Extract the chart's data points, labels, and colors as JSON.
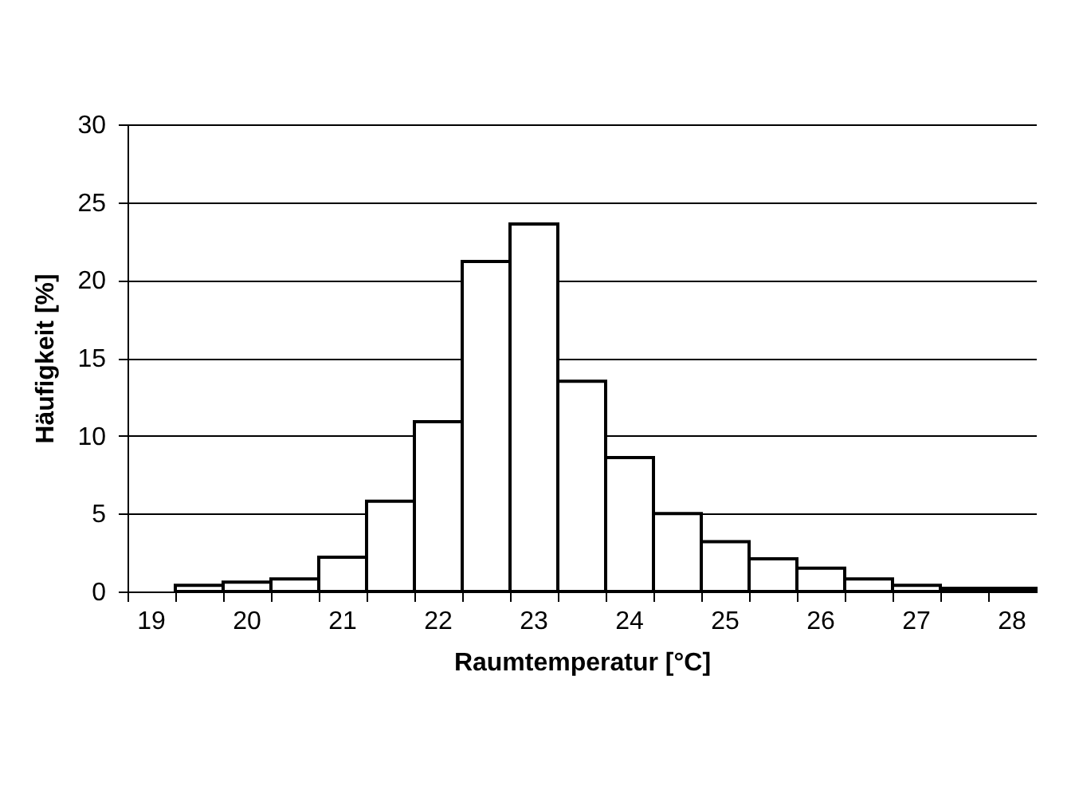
{
  "chart_data": {
    "type": "bar",
    "xlabel": "Raumtemperatur [°C]",
    "ylabel": "Häufigkeit [%]",
    "categories": [
      "19",
      null,
      "20",
      null,
      "21",
      null,
      "22",
      null,
      "23",
      null,
      "24",
      null,
      "25",
      null,
      "26",
      null,
      "27",
      null,
      "28"
    ],
    "values": [
      null,
      0.4,
      0.6,
      0.8,
      2.2,
      5.8,
      10.9,
      21.2,
      23.6,
      13.5,
      8.6,
      5.0,
      3.2,
      2.1,
      1.5,
      0.8,
      0.4,
      0.2,
      0.2
    ],
    "color": "#ffffff",
    "ylim": [
      0,
      30
    ],
    "yticks": [
      0,
      5,
      10,
      15,
      20,
      25,
      30
    ],
    "grid": "y"
  }
}
